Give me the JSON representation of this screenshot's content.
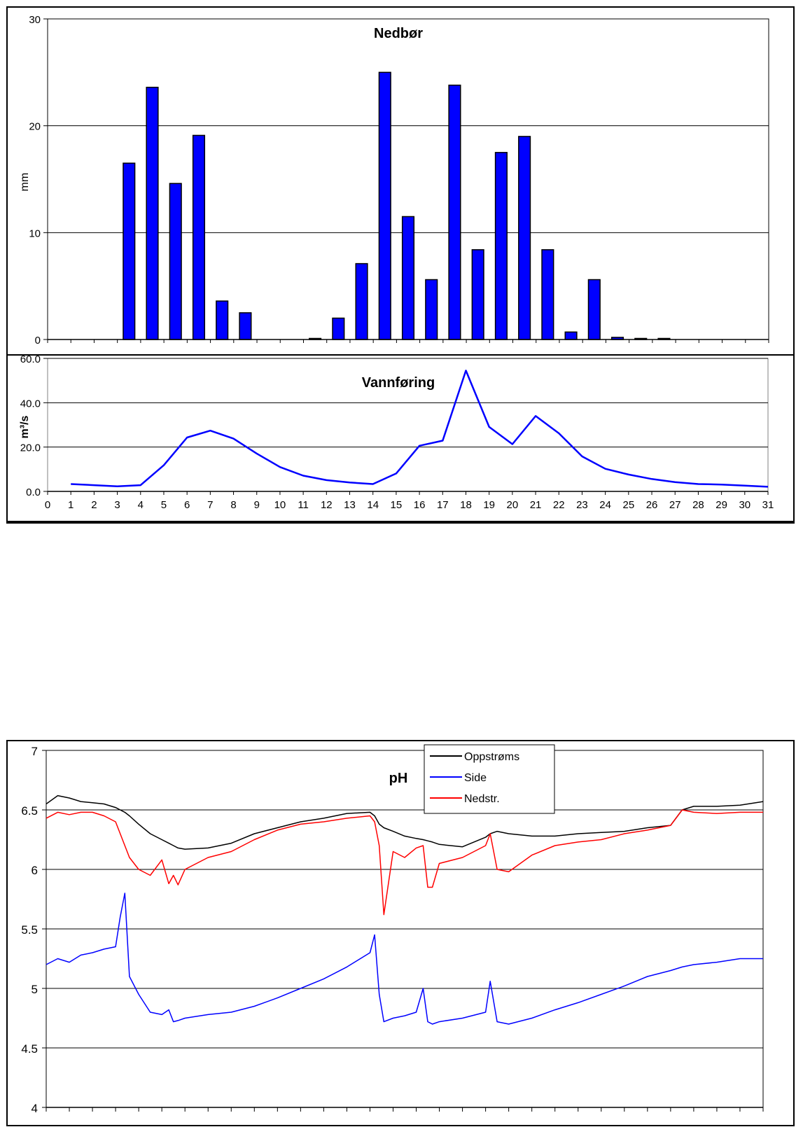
{
  "chart_data": [
    {
      "type": "bar",
      "title": "Nedbør",
      "ylabel": "mm",
      "ylim": [
        0,
        30
      ],
      "yticks": [
        "0",
        "10",
        "20",
        "30"
      ],
      "grid": true,
      "color": "#0000ff",
      "categories": [
        1,
        2,
        3,
        4,
        5,
        6,
        7,
        8,
        9,
        10,
        11,
        12,
        13,
        14,
        15,
        16,
        17,
        18,
        19,
        20,
        21,
        22,
        23,
        24,
        25,
        26,
        27,
        28,
        29,
        30,
        31
      ],
      "values": [
        0,
        0,
        0,
        16.5,
        23.6,
        14.6,
        19.1,
        3.6,
        2.5,
        0,
        0,
        0.1,
        2,
        7.1,
        25,
        11.5,
        5.6,
        23.8,
        8.4,
        17.5,
        19,
        8.4,
        0.7,
        5.6,
        0.2,
        0.1,
        0.1,
        0,
        0,
        0,
        0
      ]
    },
    {
      "type": "line",
      "title": "Vannføring",
      "ylabel": "m³/s",
      "ylim": [
        0,
        60
      ],
      "yticks": [
        "0.0",
        "20.0",
        "40.0",
        "60.0"
      ],
      "xticks": [
        "0",
        "1",
        "2",
        "3",
        "4",
        "5",
        "6",
        "7",
        "8",
        "9",
        "10",
        "11",
        "12",
        "13",
        "14",
        "15",
        "16",
        "17",
        "18",
        "19",
        "20",
        "21",
        "22",
        "23",
        "24",
        "25",
        "26",
        "27",
        "28",
        "29",
        "30",
        "31"
      ],
      "grid": true,
      "color": "#0000ff",
      "x": [
        1,
        2,
        3,
        4,
        5,
        6,
        7,
        8,
        9,
        10,
        11,
        12,
        13,
        14,
        15,
        16,
        17,
        18,
        19,
        20,
        21,
        22,
        23,
        24,
        25,
        26,
        27,
        28,
        29,
        30,
        31
      ],
      "y": [
        3.3,
        2.8,
        2.3,
        2.8,
        11.8,
        24.3,
        27.4,
        23.8,
        17.1,
        11,
        7.1,
        5.1,
        4,
        3.3,
        8.1,
        20.6,
        22.9,
        54.5,
        29.1,
        21.3,
        34,
        26.2,
        15.8,
        10.2,
        7.6,
        5.6,
        4.2,
        3.3,
        3.1,
        2.6,
        2.1
      ]
    },
    {
      "type": "line",
      "title": "pH",
      "ylim": [
        4,
        7
      ],
      "yticks": [
        "4",
        "4.5",
        "5",
        "5.5",
        "6",
        "6.5",
        "7"
      ],
      "grid": true,
      "legend_position": "top-right",
      "x": [
        0,
        0.5,
        1,
        1.5,
        2,
        2.5,
        3,
        3.2,
        3.4,
        3.6,
        4,
        4.5,
        5,
        5.3,
        5.5,
        5.7,
        6,
        7,
        8,
        9,
        10,
        11,
        12,
        13,
        14,
        14.2,
        14.4,
        14.6,
        15,
        15.5,
        16,
        16.3,
        16.5,
        16.7,
        17,
        18,
        19,
        19.2,
        19.5,
        20,
        21,
        22,
        23,
        24,
        25,
        26,
        27,
        27.5,
        28,
        29,
        30,
        31
      ],
      "series": [
        {
          "name": "Oppstrøms",
          "color": "#000000",
          "values": [
            6.55,
            6.62,
            6.6,
            6.57,
            6.56,
            6.55,
            6.52,
            6.5,
            6.48,
            6.45,
            6.38,
            6.3,
            6.25,
            6.22,
            6.2,
            6.18,
            6.17,
            6.18,
            6.22,
            6.3,
            6.35,
            6.4,
            6.43,
            6.47,
            6.48,
            6.45,
            6.38,
            6.35,
            6.32,
            6.28,
            6.26,
            6.25,
            6.24,
            6.23,
            6.21,
            6.19,
            6.27,
            6.3,
            6.32,
            6.3,
            6.28,
            6.28,
            6.3,
            6.31,
            6.32,
            6.35,
            6.37,
            6.5,
            6.53,
            6.53,
            6.54,
            6.57
          ]
        },
        {
          "name": "Side",
          "color": "#0000ff",
          "values": [
            5.2,
            5.25,
            5.22,
            5.28,
            5.3,
            5.33,
            5.35,
            5.6,
            5.8,
            5.1,
            4.95,
            4.8,
            4.78,
            4.82,
            4.72,
            4.73,
            4.75,
            4.78,
            4.8,
            4.85,
            4.92,
            5.0,
            5.08,
            5.18,
            5.3,
            5.45,
            4.95,
            4.72,
            4.75,
            4.77,
            4.8,
            5.0,
            4.72,
            4.7,
            4.72,
            4.75,
            4.8,
            5.06,
            4.72,
            4.7,
            4.75,
            4.82,
            4.88,
            4.95,
            5.02,
            5.1,
            5.15,
            5.18,
            5.2,
            5.22,
            5.25,
            5.25
          ]
        },
        {
          "name": "Nedstr.",
          "color": "#ff0000",
          "values": [
            6.43,
            6.48,
            6.46,
            6.48,
            6.48,
            6.45,
            6.4,
            6.3,
            6.2,
            6.1,
            6.0,
            5.95,
            6.08,
            5.88,
            5.95,
            5.87,
            6.0,
            6.1,
            6.15,
            6.25,
            6.33,
            6.38,
            6.4,
            6.43,
            6.45,
            6.4,
            6.2,
            5.62,
            6.15,
            6.1,
            6.18,
            6.2,
            5.85,
            5.85,
            6.05,
            6.1,
            6.2,
            6.3,
            6.0,
            5.98,
            6.12,
            6.2,
            6.23,
            6.25,
            6.3,
            6.33,
            6.37,
            6.5,
            6.48,
            6.47,
            6.48,
            6.48
          ]
        }
      ]
    }
  ]
}
